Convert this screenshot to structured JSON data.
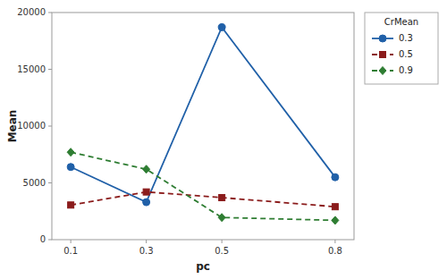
{
  "chart_data": {
    "type": "line",
    "x": [
      0.1,
      0.3,
      0.5,
      0.8
    ],
    "series": [
      {
        "name": "0.3",
        "color": "#2060a8",
        "values": [
          6400,
          3300,
          18700,
          5500
        ],
        "marker": "circle",
        "line_style": "solid"
      },
      {
        "name": "0.5",
        "color": "#8b1c1c",
        "values": [
          3050,
          4200,
          3700,
          2900
        ],
        "marker": "square",
        "line_style": "dashed"
      },
      {
        "name": "0.9",
        "color": "#2e7d32",
        "values": [
          7700,
          6200,
          1950,
          1700
        ],
        "marker": "diamond",
        "line_style": "dashed"
      }
    ],
    "xlabel": "pc",
    "ylabel": "Mean",
    "legend_title": "CrMean",
    "xlim": [
      0.05,
      0.85
    ],
    "xticks": [
      0.1,
      0.3,
      0.5,
      0.8
    ],
    "ylim": [
      0,
      20000
    ],
    "yticks": [
      0,
      5000,
      10000,
      15000,
      20000
    ],
    "grid": false,
    "legend": "right"
  }
}
